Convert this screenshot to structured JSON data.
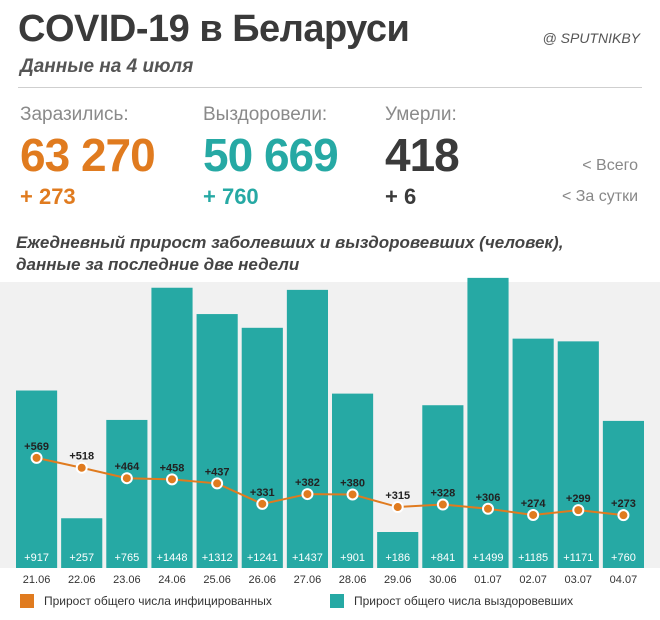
{
  "header": {
    "title": "COVID-19 в Беларуси",
    "subtitle": "Данные на 4 июля",
    "brand": "@ SPUTNIKBY"
  },
  "stats": {
    "infected": {
      "label": "Заразились:",
      "total": "63 270",
      "daily": "+ 273",
      "color": "#e07b1f"
    },
    "recovered": {
      "label": "Выздоровели:",
      "total": "50 669",
      "daily": "+ 760",
      "color": "#26a9a4"
    },
    "deaths": {
      "label": "Умерли:",
      "total": "418",
      "daily": "+ 6",
      "color": "#3a3a3a"
    },
    "legend_total": "<  Всего",
    "legend_daily": "<  За сутки"
  },
  "chart_data": {
    "type": "bar",
    "title": "Ежедневный прирост заболевших и выздоровевших (человек),",
    "subtitle": "данные за последние две недели",
    "categories": [
      "21.06",
      "22.06",
      "23.06",
      "24.06",
      "25.06",
      "26.06",
      "27.06",
      "28.06",
      "29.06",
      "30.06",
      "01.07",
      "02.07",
      "03.07",
      "04.07"
    ],
    "series": [
      {
        "name": "Прирост общего числа выздоровевших",
        "kind": "bar",
        "color": "#26a9a4",
        "values": [
          917,
          257,
          765,
          1448,
          1312,
          1241,
          1437,
          901,
          186,
          841,
          1499,
          1185,
          1171,
          760
        ],
        "labels": [
          "+917",
          "+257",
          "+765",
          "+1448",
          "+1312",
          "+1241",
          "+1437",
          "+901",
          "+186",
          "+841",
          "+1499",
          "+1185",
          "+1171",
          "+760"
        ]
      },
      {
        "name": "Прирост общего числа инфицированных",
        "kind": "line",
        "color": "#e07b1f",
        "values": [
          569,
          518,
          464,
          458,
          437,
          331,
          382,
          380,
          315,
          328,
          306,
          274,
          299,
          273
        ],
        "labels": [
          "+569",
          "+518",
          "+464",
          "+458",
          "+437",
          "+331",
          "+382",
          "+380",
          "+315",
          "+328",
          "+306",
          "+274",
          "+299",
          "+273"
        ]
      }
    ],
    "ylim": [
      0,
      1550
    ]
  },
  "legend": {
    "infected_label": "Прирост общего числа инфицированных",
    "recovered_label": "Прирост общего числа выздоровевших",
    "infected_color": "#e07b1f",
    "recovered_color": "#26a9a4"
  }
}
